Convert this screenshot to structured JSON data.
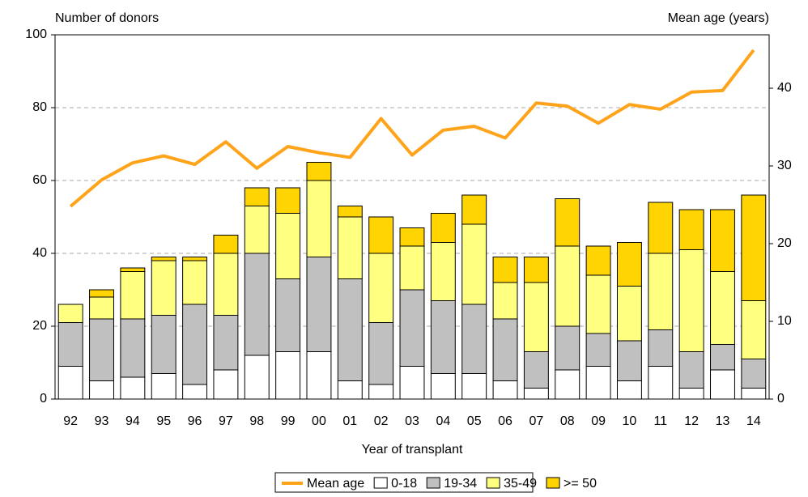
{
  "chart_data": {
    "type": "bar",
    "stacked": true,
    "y_label": "Number of donors",
    "y2_label": "Mean age (years)",
    "x_label": "Year of transplant",
    "categories": [
      "92",
      "93",
      "94",
      "95",
      "96",
      "97",
      "98",
      "99",
      "00",
      "01",
      "02",
      "03",
      "04",
      "05",
      "06",
      "07",
      "08",
      "09",
      "10",
      "11",
      "12",
      "13",
      "14"
    ],
    "series": [
      {
        "name": "Mean age",
        "type": "line",
        "axis": "y2",
        "color": "#ffa31a",
        "values": [
          24.8,
          28.2,
          30.4,
          31.3,
          30.2,
          33.1,
          29.7,
          32.5,
          31.7,
          31.1,
          36.1,
          31.4,
          34.6,
          35.1,
          33.6,
          38.1,
          37.7,
          35.5,
          37.9,
          37.3,
          39.5,
          39.7,
          44.9
        ]
      },
      {
        "name": "0-18",
        "color": "#ffffff",
        "values": [
          9,
          5,
          6,
          7,
          4,
          8,
          12,
          13,
          13,
          5,
          4,
          9,
          7,
          7,
          5,
          3,
          8,
          9,
          5,
          9,
          3,
          8,
          3
        ]
      },
      {
        "name": "19-34",
        "color": "#c0c0c0",
        "values": [
          12,
          17,
          16,
          16,
          22,
          15,
          28,
          20,
          26,
          28,
          17,
          21,
          20,
          19,
          17,
          10,
          12,
          9,
          11,
          10,
          10,
          7,
          8
        ]
      },
      {
        "name": "35-49",
        "color": "#ffff80",
        "values": [
          5,
          6,
          13,
          15,
          12,
          17,
          13,
          18,
          21,
          17,
          19,
          12,
          16,
          22,
          10,
          19,
          22,
          16,
          15,
          21,
          28,
          20,
          16
        ]
      },
      {
        "name": ">= 50",
        "color": "#ffd400",
        "values": [
          0,
          2,
          1,
          1,
          1,
          5,
          5,
          7,
          5,
          3,
          10,
          5,
          8,
          8,
          7,
          7,
          13,
          8,
          12,
          14,
          11,
          17,
          29
        ]
      }
    ],
    "ylim": [
      0,
      100
    ],
    "yticks": [
      0,
      20,
      40,
      60,
      80,
      100
    ],
    "y2lim": [
      0,
      46.875
    ],
    "y2ticks": [
      0,
      10,
      20,
      30,
      40
    ],
    "grid": true,
    "legend": "bottom"
  }
}
